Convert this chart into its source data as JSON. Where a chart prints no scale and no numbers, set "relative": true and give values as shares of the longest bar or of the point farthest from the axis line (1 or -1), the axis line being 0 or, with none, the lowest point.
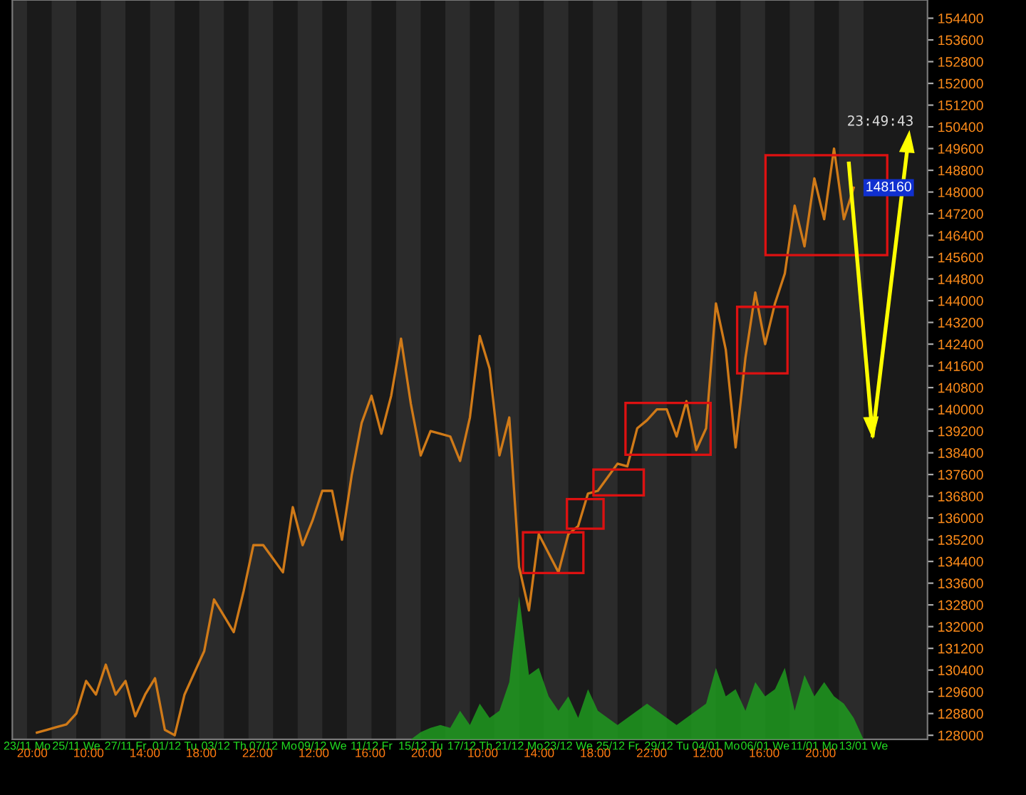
{
  "chart_data": [
    {
      "type": "line",
      "color": "#d07a18",
      "categories": [
        null,
        "23/11 Mo",
        null,
        null,
        null,
        null,
        "25/11 We",
        null,
        null,
        null,
        null,
        "27/11 Fr",
        null,
        null,
        null,
        null,
        "01/12 Tu",
        null,
        null,
        null,
        null,
        "03/12 Th",
        null,
        null,
        null,
        null,
        "07/12 Mo",
        null,
        null,
        null,
        null,
        "09/12 We",
        null,
        null,
        null,
        null,
        "11/12 Fr",
        null,
        null,
        null,
        null,
        "15/12 Tu",
        null,
        null,
        null,
        null,
        "17/12 Th",
        null,
        null,
        null,
        null,
        "21/12 Mo",
        null,
        null,
        null,
        null,
        "23/12 We",
        null,
        null,
        null,
        null,
        "25/12 Fr",
        null,
        null,
        null,
        null,
        "29/12 Tu",
        null,
        null,
        null,
        null,
        "04/01 Mo",
        null,
        null,
        null,
        null,
        "06/01 We",
        null,
        null,
        null,
        null,
        "11/01 Mo",
        null,
        null,
        null,
        null,
        "13/01 We"
      ],
      "values": [
        null,
        null,
        128100,
        128200,
        128300,
        128400,
        128800,
        130000,
        129500,
        130600,
        129500,
        130000,
        128700,
        129500,
        130100,
        128200,
        128000,
        129500,
        130300,
        131100,
        133000,
        132400,
        131800,
        133300,
        135000,
        135000,
        134500,
        134000,
        136400,
        135000,
        135900,
        137000,
        137000,
        135200,
        137600,
        139500,
        140500,
        139100,
        140500,
        142600,
        140200,
        138300,
        139200,
        139100,
        139000,
        138100,
        139700,
        142700,
        141500,
        138300,
        139700,
        134200,
        132600,
        135400,
        134700,
        134000,
        135400,
        135700,
        136900,
        137000,
        137500,
        138000,
        137900,
        139300,
        139600,
        140000,
        140000,
        139000,
        140300,
        138500,
        139300,
        143900,
        142200,
        138600,
        141900,
        144300,
        142400,
        143900,
        145000,
        147500,
        146000,
        148500,
        147000,
        149600,
        147000,
        148160,
        null
      ],
      "ylim": [
        127850,
        155070
      ],
      "yticks": [
        128000,
        128800,
        129600,
        130400,
        131200,
        132000,
        132800,
        133600,
        134400,
        135200,
        136000,
        136800,
        137600,
        138400,
        139200,
        140000,
        140800,
        141600,
        142400,
        143200,
        144000,
        144800,
        145600,
        146400,
        147200,
        148000,
        148800,
        149600,
        150400,
        151200,
        152000,
        152800,
        153600,
        154400
      ],
      "annotations": [
        "20:00",
        "10:00",
        "14:00",
        "18:00",
        "22:00",
        "12:00",
        "16:00",
        "20:00",
        "10:00",
        "14:00",
        "18:00",
        "22:00",
        "12:00",
        "16:00",
        "20:00",
        "23:49:43",
        {
          "text": "148160",
          "y": 148160
        }
      ],
      "grid": false,
      "legend": false,
      "marker": "none",
      "line_style": "solid"
    },
    {
      "type": "area",
      "relative": true,
      "color": "#1f9a1f",
      "categories": [
        null,
        null,
        null,
        null,
        null,
        null,
        null,
        null,
        null,
        null,
        null,
        null,
        null,
        null,
        null,
        null,
        null,
        null,
        null,
        null,
        null,
        null,
        null,
        null,
        null,
        null,
        null,
        null,
        null,
        null,
        null,
        null,
        null,
        null,
        null,
        null,
        null,
        null,
        null,
        null,
        null,
        null,
        null,
        null,
        null,
        null,
        null,
        null,
        null,
        null,
        null,
        null,
        null,
        null,
        null,
        null,
        null,
        null,
        null,
        null,
        null,
        null,
        null,
        null,
        null,
        null,
        null,
        null,
        null,
        null,
        null,
        null,
        null,
        null,
        null,
        null,
        null,
        null,
        null,
        null,
        null,
        null,
        null,
        null,
        null,
        null,
        null
      ],
      "values": [
        null,
        null,
        null,
        null,
        null,
        null,
        null,
        null,
        null,
        null,
        null,
        null,
        null,
        null,
        null,
        null,
        null,
        null,
        null,
        null,
        null,
        null,
        null,
        null,
        null,
        null,
        null,
        null,
        null,
        null,
        null,
        null,
        null,
        null,
        null,
        null,
        null,
        null,
        null,
        null,
        0,
        0.05,
        0.08,
        0.1,
        0.08,
        0.2,
        0.1,
        0.25,
        0.15,
        0.2,
        0.4,
        1.0,
        0.45,
        0.5,
        0.3,
        0.2,
        0.3,
        0.15,
        0.35,
        0.2,
        0.15,
        0.1,
        0.15,
        0.2,
        0.25,
        0.2,
        0.15,
        0.1,
        0.15,
        0.2,
        0.25,
        0.5,
        0.3,
        0.35,
        0.2,
        0.4,
        0.3,
        0.35,
        0.5,
        0.2,
        0.45,
        0.3,
        0.4,
        0.3,
        0.25,
        0.15,
        0
      ]
    }
  ]
}
